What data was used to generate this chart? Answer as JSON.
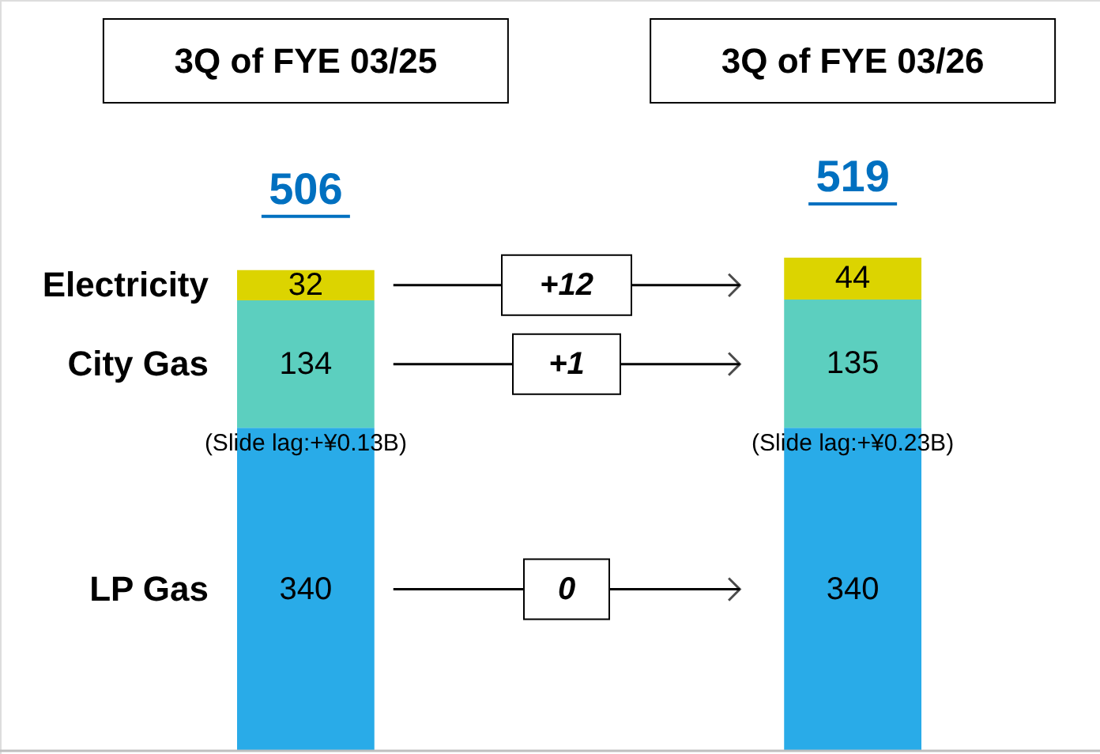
{
  "chart_data": {
    "type": "bar",
    "stacked": true,
    "data_labels": true,
    "categories": [
      "3Q of FYE 03/25",
      "3Q of FYE 03/26"
    ],
    "series": [
      {
        "name": "LP Gas",
        "color": "#29abe8",
        "values": [
          340,
          340
        ]
      },
      {
        "name": "City Gas",
        "color": "#5ccfbf",
        "values": [
          134,
          135
        ]
      },
      {
        "name": "Electricity",
        "color": "#dcd400",
        "values": [
          32,
          44
        ]
      }
    ],
    "totals": [
      "506",
      "519"
    ],
    "annotations": [
      "(Slide lag:+¥0.13B)",
      "(Slide lag:+¥0.23B)",
      "+12",
      "+1",
      "0"
    ]
  }
}
